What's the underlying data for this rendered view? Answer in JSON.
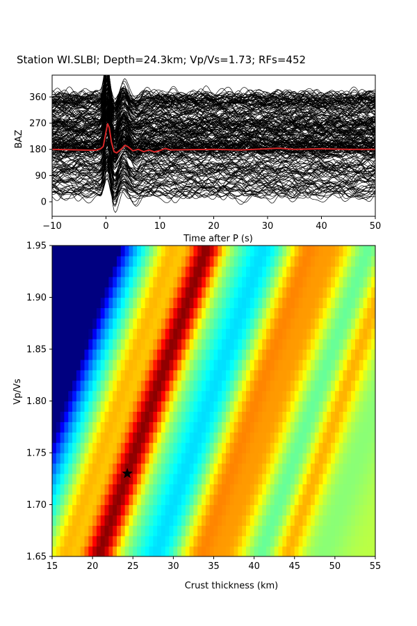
{
  "chart_data": [
    {
      "type": "line",
      "title": "Station WI.SLBI; Depth=24.3km; Vp/Vs=1.73; RFs=452",
      "xlabel": "Time after P (s)",
      "ylabel": "BAZ",
      "xlim": [
        -10,
        50
      ],
      "ylim": [
        -50,
        435
      ],
      "xticks": [
        -10,
        0,
        10,
        20,
        30,
        40,
        50
      ],
      "yticks": [
        0,
        90,
        180,
        270,
        360
      ],
      "grid": false,
      "series": [
        {
          "color": "#000000",
          "x": [
            -10,
            50
          ],
          "y": [
            180,
            180
          ]
        },
        {
          "color": "#d62728",
          "x": [
            -10,
            -5,
            -2,
            -1,
            -0.5,
            0,
            0.3,
            0.6,
            1,
            1.5,
            2,
            3,
            3.5,
            4,
            5,
            6,
            7,
            8,
            9,
            10,
            11,
            12,
            15,
            20,
            25,
            30,
            32,
            35,
            40,
            45,
            50
          ],
          "y": [
            180,
            178,
            177,
            182,
            190,
            240,
            268,
            255,
            205,
            172,
            168,
            184,
            194,
            190,
            175,
            180,
            172,
            178,
            171,
            176,
            183,
            178,
            179,
            180,
            178,
            182,
            184,
            180,
            182,
            180,
            180
          ]
        }
      ]
    },
    {
      "type": "heatmap",
      "title": "",
      "xlabel": "Crust thickness (km)",
      "ylabel": "Vp/Vs",
      "xlim": [
        15,
        55
      ],
      "ylim": [
        1.65,
        1.95
      ],
      "xticks": [
        15,
        20,
        25,
        30,
        35,
        40,
        45,
        50,
        55
      ],
      "yticks": [
        1.65,
        1.7,
        1.75,
        1.8,
        1.85,
        1.9,
        1.95
      ],
      "ytick_labels": [
        "1.65",
        "1.70",
        "1.75",
        "1.80",
        "1.85",
        "1.90",
        "1.95"
      ],
      "colormap": "jet",
      "best_fit": {
        "x": 24.3,
        "y": 1.73
      }
    }
  ]
}
